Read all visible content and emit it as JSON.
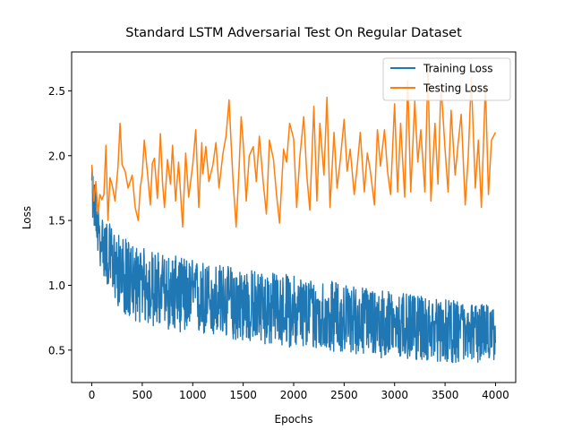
{
  "chart_data": {
    "type": "line",
    "title": "Standard LSTM Adversarial Test On Regular Dataset",
    "xlabel": "Epochs",
    "ylabel": "Loss",
    "xlim": [
      -200,
      4200
    ],
    "ylim": [
      0.25,
      2.8
    ],
    "xticks": [
      0,
      500,
      1000,
      1500,
      2000,
      2500,
      3000,
      3500,
      4000
    ],
    "yticks": [
      0.5,
      1.0,
      1.5,
      2.0,
      2.5
    ],
    "grid": false,
    "legend_position": "top-right",
    "series": [
      {
        "name": "Training Loss",
        "color": "#1f77b4",
        "x": [
          0,
          40,
          80,
          150,
          250,
          350,
          450,
          600,
          800,
          1000,
          1200,
          1400,
          1600,
          1800,
          2000,
          2200,
          2400,
          2600,
          2800,
          3000,
          3200,
          3400,
          3600,
          3800,
          4000
        ],
        "mean": [
          1.75,
          1.5,
          1.35,
          1.25,
          1.12,
          1.05,
          1.0,
          0.97,
          0.94,
          0.92,
          0.88,
          0.86,
          0.84,
          0.82,
          0.8,
          0.78,
          0.76,
          0.75,
          0.73,
          0.71,
          0.69,
          0.68,
          0.66,
          0.65,
          0.64
        ],
        "band_low": [
          1.55,
          1.35,
          1.15,
          1.0,
          0.85,
          0.75,
          0.72,
          0.68,
          0.65,
          0.62,
          0.6,
          0.58,
          0.55,
          0.53,
          0.52,
          0.5,
          0.49,
          0.47,
          0.45,
          0.42,
          0.42,
          0.41,
          0.4,
          0.4,
          0.42
        ],
        "band_high": [
          1.92,
          1.75,
          1.55,
          1.5,
          1.4,
          1.35,
          1.3,
          1.27,
          1.23,
          1.2,
          1.17,
          1.15,
          1.12,
          1.1,
          1.08,
          1.05,
          1.03,
          1.0,
          0.98,
          0.95,
          0.92,
          0.9,
          0.88,
          0.86,
          0.85
        ]
      },
      {
        "name": "Testing Loss",
        "color": "#ff7f0e",
        "x": [
          0,
          20,
          40,
          60,
          80,
          100,
          120,
          140,
          160,
          180,
          200,
          230,
          260,
          280,
          300,
          330,
          360,
          400,
          430,
          460,
          480,
          500,
          520,
          550,
          580,
          600,
          620,
          650,
          680,
          700,
          720,
          750,
          780,
          800,
          830,
          860,
          900,
          930,
          960,
          1000,
          1030,
          1060,
          1090,
          1100,
          1130,
          1160,
          1200,
          1230,
          1260,
          1300,
          1330,
          1360,
          1380,
          1400,
          1430,
          1460,
          1480,
          1500,
          1530,
          1560,
          1600,
          1630,
          1660,
          1700,
          1730,
          1760,
          1800,
          1830,
          1860,
          1900,
          1930,
          1960,
          2000,
          2030,
          2060,
          2100,
          2130,
          2160,
          2200,
          2230,
          2260,
          2300,
          2330,
          2360,
          2400,
          2430,
          2460,
          2500,
          2530,
          2560,
          2600,
          2630,
          2660,
          2700,
          2730,
          2760,
          2800,
          2830,
          2860,
          2900,
          2930,
          2960,
          3000,
          3030,
          3060,
          3100,
          3130,
          3160,
          3200,
          3230,
          3260,
          3300,
          3330,
          3360,
          3400,
          3430,
          3460,
          3500,
          3530,
          3560,
          3600,
          3630,
          3660,
          3700,
          3730,
          3760,
          3800,
          3830,
          3860,
          3900,
          3930,
          3960,
          4000
        ],
        "y": [
          1.93,
          1.65,
          1.8,
          1.55,
          1.7,
          1.66,
          1.7,
          2.08,
          1.5,
          1.83,
          1.78,
          1.65,
          1.92,
          2.25,
          1.93,
          1.88,
          1.75,
          1.85,
          1.6,
          1.5,
          1.75,
          1.86,
          2.12,
          1.88,
          1.62,
          1.94,
          1.98,
          1.67,
          2.17,
          1.8,
          1.6,
          1.97,
          1.78,
          2.08,
          1.65,
          1.95,
          1.45,
          2.02,
          1.68,
          1.93,
          2.2,
          1.6,
          2.1,
          1.86,
          2.07,
          1.8,
          1.93,
          2.1,
          1.75,
          2.02,
          2.15,
          2.43,
          2.1,
          1.8,
          1.45,
          1.92,
          2.3,
          2.1,
          1.65,
          2.0,
          2.07,
          1.8,
          2.15,
          1.78,
          1.55,
          2.12,
          1.97,
          1.7,
          1.48,
          2.05,
          1.95,
          2.25,
          2.13,
          1.6,
          1.98,
          2.3,
          1.85,
          1.58,
          2.38,
          1.65,
          2.25,
          1.85,
          2.45,
          1.6,
          2.18,
          1.75,
          1.95,
          2.28,
          1.88,
          2.05,
          1.7,
          1.92,
          2.18,
          1.72,
          2.02,
          1.88,
          1.62,
          2.2,
          1.92,
          2.2,
          1.88,
          1.7,
          2.4,
          1.72,
          2.25,
          1.68,
          2.58,
          1.72,
          2.42,
          1.95,
          2.2,
          1.72,
          2.68,
          1.65,
          2.25,
          1.78,
          2.55,
          2.05,
          1.72,
          2.35,
          1.85,
          2.1,
          2.32,
          1.62,
          2.0,
          2.6,
          1.75,
          2.12,
          1.6,
          2.55,
          1.7,
          2.12,
          2.18
        ]
      }
    ]
  }
}
